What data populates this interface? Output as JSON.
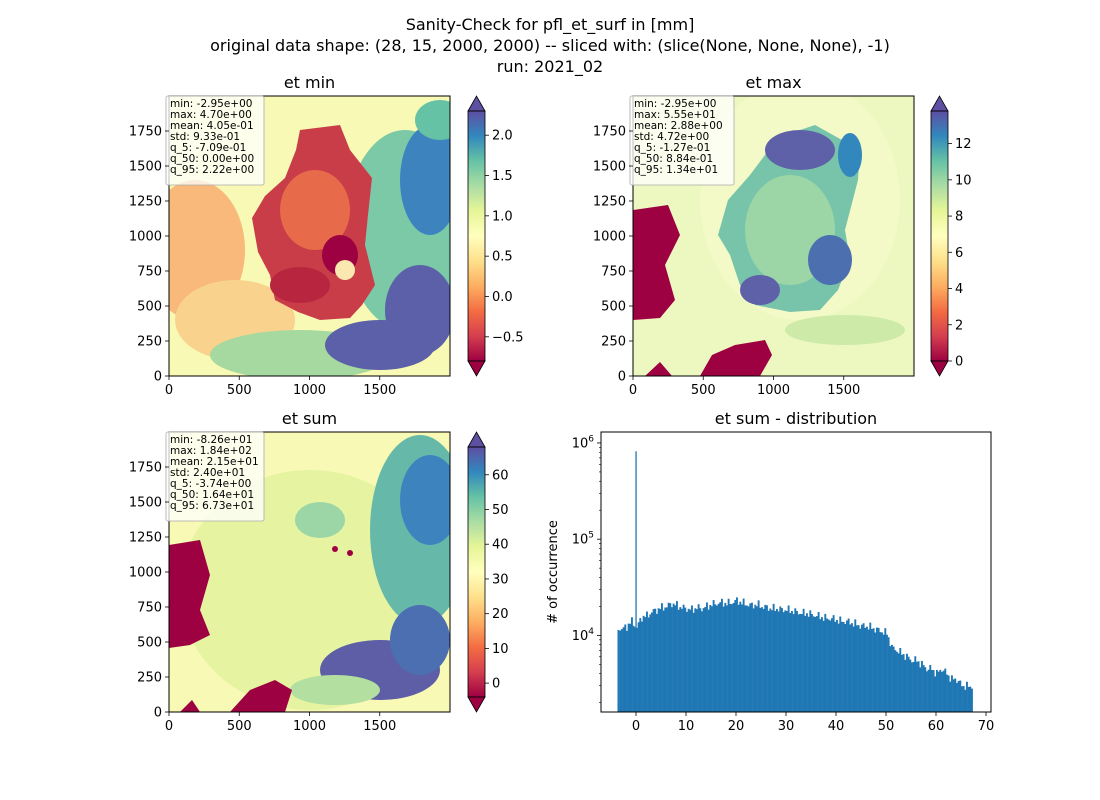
{
  "figure": {
    "title_lines": [
      "Sanity-Check for pfl_et_surf in [mm]",
      "original data shape: (28, 15, 2000, 2000) -- sliced with: (slice(None, None, None), -1)",
      "run: 2021_02"
    ]
  },
  "chart_data": [
    {
      "type": "heatmap",
      "title": "et min",
      "colormap": "Spectral",
      "xlim": [
        0,
        2000
      ],
      "ylim": [
        0,
        2000
      ],
      "xticks": [
        0,
        500,
        1000,
        1500
      ],
      "yticks": [
        0,
        250,
        500,
        750,
        1000,
        1250,
        1500,
        1750
      ],
      "color_range": [
        -0.8,
        2.3
      ],
      "colorbar_ticks": [
        -0.5,
        0.0,
        0.5,
        1.0,
        1.5,
        2.0
      ],
      "colorbar_labels": [
        "−0.5",
        "0.0",
        "0.5",
        "1.0",
        "1.5",
        "2.0"
      ],
      "stats": [
        "min: -2.95e+00",
        "max: 4.70e+00",
        "mean: 4.05e-01",
        "std: 9.33e-01",
        "q_5: -7.09e-01",
        "q_50: 0.00e+00",
        "q_95: 2.22e+00"
      ]
    },
    {
      "type": "heatmap",
      "title": "et max",
      "colormap": "Spectral",
      "xlim": [
        0,
        2000
      ],
      "ylim": [
        0,
        2000
      ],
      "xticks": [
        0,
        500,
        1000,
        1500
      ],
      "yticks": [
        0,
        250,
        500,
        750,
        1000,
        1250,
        1500,
        1750
      ],
      "color_range": [
        0,
        13.8
      ],
      "colorbar_ticks": [
        0,
        2,
        4,
        6,
        8,
        10,
        12
      ],
      "colorbar_labels": [
        "0",
        "2",
        "4",
        "6",
        "8",
        "10",
        "12"
      ],
      "stats": [
        "min: -2.95e+00",
        "max: 5.55e+01",
        "mean: 2.88e+00",
        "std: 4.72e+00",
        "q_5: -1.27e-01",
        "q_50: 8.84e-01",
        "q_95: 1.34e+01"
      ]
    },
    {
      "type": "heatmap",
      "title": "et sum",
      "colormap": "Spectral",
      "xlim": [
        0,
        2000
      ],
      "ylim": [
        0,
        2000
      ],
      "xticks": [
        0,
        500,
        1000,
        1500
      ],
      "yticks": [
        0,
        250,
        500,
        750,
        1000,
        1250,
        1500,
        1750
      ],
      "color_range": [
        -4,
        68
      ],
      "colorbar_ticks": [
        0,
        10,
        20,
        30,
        40,
        50,
        60
      ],
      "colorbar_labels": [
        "0",
        "10",
        "20",
        "30",
        "40",
        "50",
        "60"
      ],
      "stats": [
        "min: -8.26e+01",
        "max: 1.84e+02",
        "mean: 2.15e+01",
        "std: 2.40e+01",
        "q_5: -3.74e+00",
        "q_50: 1.64e+01",
        "q_95: 6.73e+01"
      ]
    },
    {
      "type": "bar",
      "title": "et sum - distribution",
      "ylabel": "# of occurrence",
      "xlim": [
        -7,
        71
      ],
      "yscale": "log",
      "ylim": [
        1600,
        1300000
      ],
      "xticks": [
        0,
        10,
        20,
        30,
        40,
        50,
        60,
        70
      ],
      "ytick_labels": [
        {
          "value": 10000,
          "base": "10",
          "exp": "4"
        },
        {
          "value": 100000,
          "base": "10",
          "exp": "5"
        },
        {
          "value": 1000000,
          "base": "10",
          "exp": "6"
        }
      ],
      "spike": {
        "x": 0,
        "count": 820000
      },
      "bin_width": 0.34,
      "bins": [
        {
          "x": -3.7,
          "count": 12000
        },
        {
          "x": -3.0,
          "count": 11500
        },
        {
          "x": -2.0,
          "count": 12500
        },
        {
          "x": -1.0,
          "count": 14000
        },
        {
          "x": 0.0,
          "count": 12000
        },
        {
          "x": 1.0,
          "count": 15500
        },
        {
          "x": 2.0,
          "count": 16000
        },
        {
          "x": 3.0,
          "count": 17500
        },
        {
          "x": 4.0,
          "count": 18500
        },
        {
          "x": 5.0,
          "count": 19500
        },
        {
          "x": 6.0,
          "count": 20000
        },
        {
          "x": 7.0,
          "count": 21500
        },
        {
          "x": 8.0,
          "count": 20500
        },
        {
          "x": 9.0,
          "count": 19500
        },
        {
          "x": 10.0,
          "count": 19000
        },
        {
          "x": 11.0,
          "count": 18500
        },
        {
          "x": 12.0,
          "count": 19500
        },
        {
          "x": 13.0,
          "count": 19000
        },
        {
          "x": 14.0,
          "count": 20000
        },
        {
          "x": 15.0,
          "count": 21000
        },
        {
          "x": 16.0,
          "count": 21500
        },
        {
          "x": 17.0,
          "count": 22000
        },
        {
          "x": 18.0,
          "count": 21500
        },
        {
          "x": 19.0,
          "count": 22000
        },
        {
          "x": 20.0,
          "count": 23000
        },
        {
          "x": 21.0,
          "count": 22000
        },
        {
          "x": 22.0,
          "count": 21000
        },
        {
          "x": 23.0,
          "count": 20500
        },
        {
          "x": 24.0,
          "count": 21000
        },
        {
          "x": 25.0,
          "count": 20000
        },
        {
          "x": 26.0,
          "count": 19500
        },
        {
          "x": 27.0,
          "count": 19000
        },
        {
          "x": 28.0,
          "count": 19000
        },
        {
          "x": 29.0,
          "count": 18500
        },
        {
          "x": 30.0,
          "count": 18500
        },
        {
          "x": 31.0,
          "count": 18000
        },
        {
          "x": 32.0,
          "count": 17500
        },
        {
          "x": 33.0,
          "count": 17000
        },
        {
          "x": 34.0,
          "count": 17000
        },
        {
          "x": 35.0,
          "count": 16500
        },
        {
          "x": 36.0,
          "count": 16000
        },
        {
          "x": 37.0,
          "count": 15500
        },
        {
          "x": 38.0,
          "count": 15000
        },
        {
          "x": 39.0,
          "count": 15000
        },
        {
          "x": 40.0,
          "count": 14500
        },
        {
          "x": 41.0,
          "count": 14000
        },
        {
          "x": 42.0,
          "count": 14000
        },
        {
          "x": 43.0,
          "count": 13500
        },
        {
          "x": 44.0,
          "count": 13000
        },
        {
          "x": 45.0,
          "count": 12500
        },
        {
          "x": 46.0,
          "count": 12500
        },
        {
          "x": 47.0,
          "count": 12000
        },
        {
          "x": 48.0,
          "count": 11500
        },
        {
          "x": 49.0,
          "count": 11000
        },
        {
          "x": 50.0,
          "count": 10500
        },
        {
          "x": 51.0,
          "count": 7500
        },
        {
          "x": 52.0,
          "count": 7000
        },
        {
          "x": 53.0,
          "count": 6500
        },
        {
          "x": 54.0,
          "count": 6000
        },
        {
          "x": 55.0,
          "count": 5500
        },
        {
          "x": 56.0,
          "count": 5500
        },
        {
          "x": 57.0,
          "count": 5000
        },
        {
          "x": 58.0,
          "count": 4500
        },
        {
          "x": 59.0,
          "count": 4500
        },
        {
          "x": 60.0,
          "count": 4000
        },
        {
          "x": 61.0,
          "count": 4500
        },
        {
          "x": 62.0,
          "count": 4000
        },
        {
          "x": 63.0,
          "count": 3500
        },
        {
          "x": 64.0,
          "count": 3500
        },
        {
          "x": 65.0,
          "count": 3000
        },
        {
          "x": 66.0,
          "count": 3000
        },
        {
          "x": 67.0,
          "count": 2800
        }
      ]
    }
  ]
}
